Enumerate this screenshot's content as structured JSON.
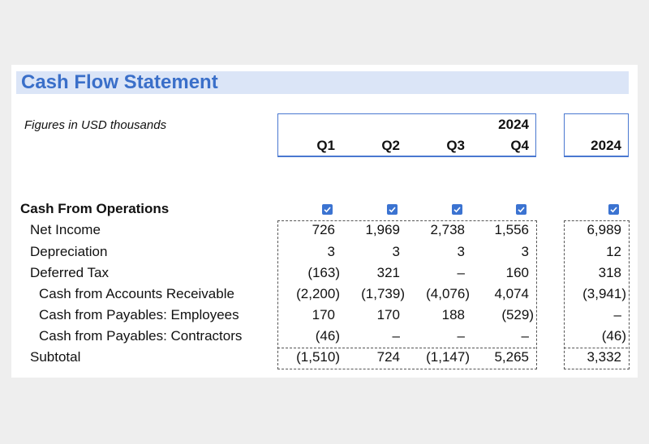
{
  "title": "Cash Flow Statement",
  "subtitle": "Figures in USD thousands",
  "header": {
    "year": "2024",
    "quarters": [
      "Q1",
      "Q2",
      "Q3",
      "Q4"
    ],
    "annual": "2024"
  },
  "section": "Cash From Operations",
  "rows": [
    {
      "label": "Net Income",
      "values": [
        "726",
        "1,969",
        "2,738",
        "1,556",
        "6,989"
      ]
    },
    {
      "label": "Depreciation",
      "values": [
        "3",
        "3",
        "3",
        "3",
        "12"
      ]
    },
    {
      "label": "Deferred Tax",
      "values": [
        "(163)",
        "321",
        "–",
        "160",
        "318"
      ]
    },
    {
      "label": "Cash from Accounts Receivable",
      "values": [
        "(2,200)",
        "(1,739)",
        "(4,076)",
        "4,074",
        "(3,941)"
      ]
    },
    {
      "label": "Cash from Payables: Employees",
      "values": [
        "170",
        "170",
        "188",
        "(529)",
        "–"
      ]
    },
    {
      "label": "Cash from Payables: Contractors",
      "values": [
        "(46)",
        "–",
        "–",
        "–",
        "(46)"
      ]
    },
    {
      "label": "Subtotal",
      "values": [
        "(1,510)",
        "724",
        "(1,147)",
        "5,265",
        "3,332"
      ]
    }
  ]
}
